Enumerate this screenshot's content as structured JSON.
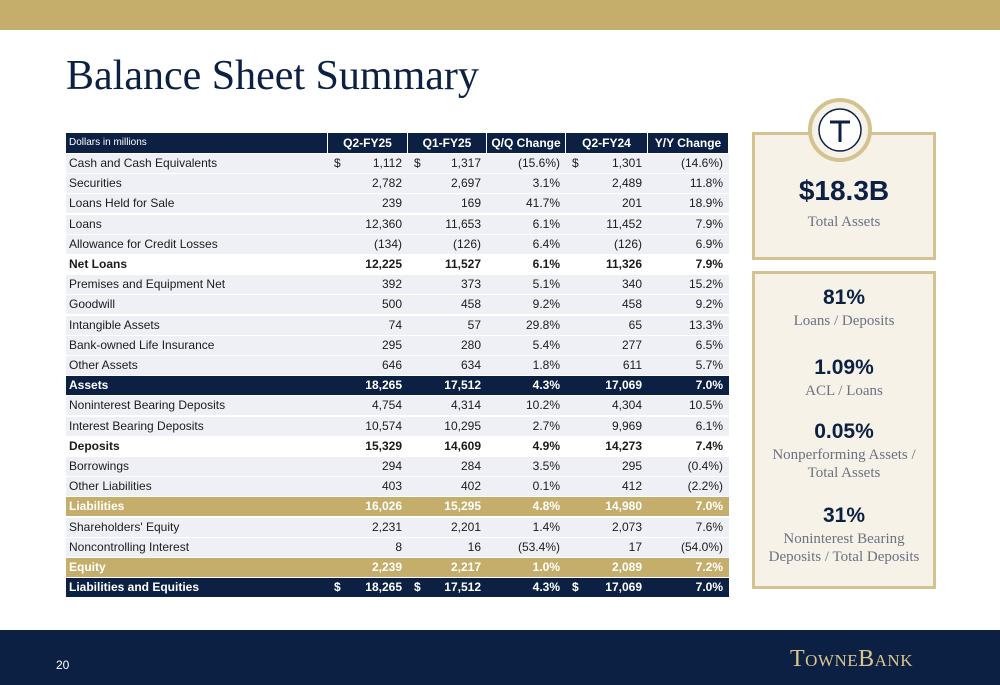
{
  "header": {
    "title": "Balance Sheet Summary"
  },
  "table": {
    "columns": [
      "Dollars in millions",
      "Q2-FY25",
      "Q1-FY25",
      "Q/Q Change",
      "Q2-FY24",
      "Y/Y Change"
    ],
    "rows": [
      {
        "label": "Cash and Cash Equivalents",
        "currency": "$",
        "cells": [
          "1,112",
          "1,317",
          "(15.6%)",
          "1,301",
          "(14.6%)"
        ]
      },
      {
        "label": "Securities",
        "cells": [
          "2,782",
          "2,697",
          "3.1%",
          "2,489",
          "11.8%"
        ]
      },
      {
        "label": "Loans Held for Sale",
        "cells": [
          "239",
          "169",
          "41.7%",
          "201",
          "18.9%"
        ]
      },
      {
        "label": "Loans",
        "cells": [
          "12,360",
          "11,653",
          "6.1%",
          "11,452",
          "7.9%"
        ]
      },
      {
        "label": "Allowance for Credit Losses",
        "cells": [
          "(134)",
          "(126)",
          "6.4%",
          "(126)",
          "6.9%"
        ]
      },
      {
        "label": "Net Loans",
        "style": "bold",
        "cells": [
          "12,225",
          "11,527",
          "6.1%",
          "11,326",
          "7.9%"
        ]
      },
      {
        "label": "Premises and Equipment Net",
        "cells": [
          "392",
          "373",
          "5.1%",
          "340",
          "15.2%"
        ]
      },
      {
        "label": "Goodwill",
        "cells": [
          "500",
          "458",
          "9.2%",
          "458",
          "9.2%"
        ]
      },
      {
        "label": "Intangible Assets",
        "cells": [
          "74",
          "57",
          "29.8%",
          "65",
          "13.3%"
        ]
      },
      {
        "label": "Bank-owned Life Insurance",
        "cells": [
          "295",
          "280",
          "5.4%",
          "277",
          "6.5%"
        ]
      },
      {
        "label": "Other Assets",
        "cells": [
          "646",
          "634",
          "1.8%",
          "611",
          "5.7%"
        ]
      },
      {
        "label": "Assets",
        "style": "navy",
        "cells": [
          "18,265",
          "17,512",
          "4.3%",
          "17,069",
          "7.0%"
        ]
      },
      {
        "label": "Noninterest Bearing Deposits",
        "cells": [
          "4,754",
          "4,314",
          "10.2%",
          "4,304",
          "10.5%"
        ]
      },
      {
        "label": "Interest Bearing Deposits",
        "cells": [
          "10,574",
          "10,295",
          "2.7%",
          "9,969",
          "6.1%"
        ]
      },
      {
        "label": "Deposits",
        "style": "bold",
        "cells": [
          "15,329",
          "14,609",
          "4.9%",
          "14,273",
          "7.4%"
        ]
      },
      {
        "label": "Borrowings",
        "cells": [
          "294",
          "284",
          "3.5%",
          "295",
          "(0.4%)"
        ]
      },
      {
        "label": "Other Liabilities",
        "cells": [
          "403",
          "402",
          "0.1%",
          "412",
          "(2.2%)"
        ]
      },
      {
        "label": "Liabilities",
        "style": "gold",
        "cells": [
          "16,026",
          "15,295",
          "4.8%",
          "14,980",
          "7.0%"
        ]
      },
      {
        "label": "Shareholders' Equity",
        "cells": [
          "2,231",
          "2,201",
          "1.4%",
          "2,073",
          "7.6%"
        ]
      },
      {
        "label": "Noncontrolling Interest",
        "cells": [
          "8",
          "16",
          "(53.4%)",
          "17",
          "(54.0%)"
        ]
      },
      {
        "label": "Equity",
        "style": "gold",
        "cells": [
          "2,239",
          "2,217",
          "1.0%",
          "2,089",
          "7.2%"
        ]
      },
      {
        "label": "Liabilities and Equities",
        "style": "navy",
        "currency": "$",
        "cells": [
          "18,265",
          "17,512",
          "4.3%",
          "17,069",
          "7.0%"
        ]
      }
    ]
  },
  "summary": {
    "total": {
      "value": "$18.3B",
      "label": "Total Assets"
    },
    "stats": [
      {
        "value": "81%",
        "label": "Loans / Deposits"
      },
      {
        "value": "1.09%",
        "label": "ACL / Loans"
      },
      {
        "value": "0.05%",
        "label": "Nonperforming Assets / Total Assets"
      },
      {
        "value": "31%",
        "label": "Noninterest Bearing Deposits / Total Deposits"
      }
    ]
  },
  "footer": {
    "page": "20",
    "logo": "TowneBank"
  }
}
